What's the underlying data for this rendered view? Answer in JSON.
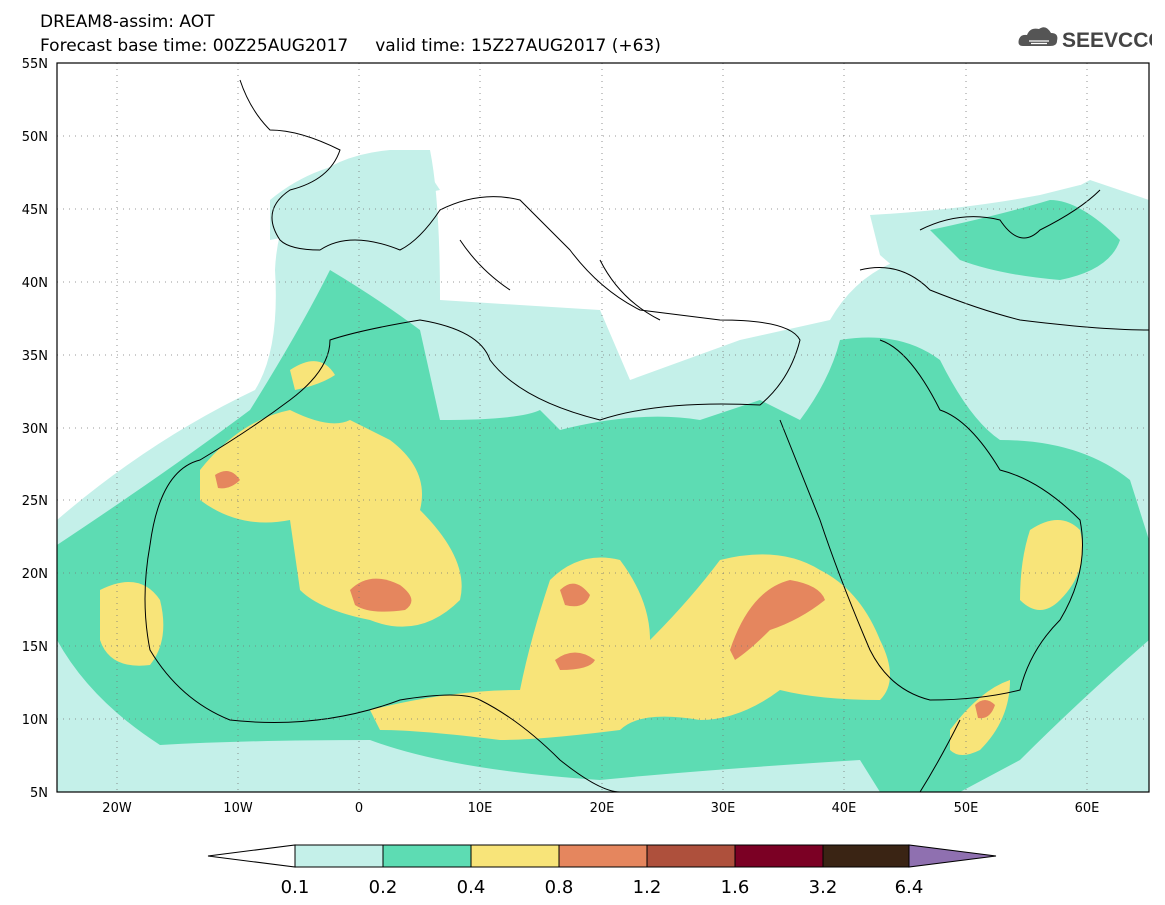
{
  "header": {
    "line1": "DREAM8-assim: AOT",
    "line2": "Forecast base time: 00Z25AUG2017     valid time: 15Z27AUG2017 (+63)"
  },
  "logo": {
    "text": "SEEVCCC",
    "icon": "cloud-icon"
  },
  "map": {
    "lon_range": [
      -25,
      65
    ],
    "lat_range": [
      5,
      55
    ],
    "lat_labels": [
      "55N",
      "50N",
      "45N",
      "40N",
      "35N",
      "30N",
      "25N",
      "20N",
      "15N",
      "10N",
      "5N"
    ],
    "lon_labels": [
      "20W",
      "10W",
      "0",
      "10E",
      "20E",
      "30E",
      "40E",
      "50E",
      "60E"
    ],
    "grid": "dotted"
  },
  "colorbar": {
    "colors": [
      "#ffffff",
      "#c4f0e9",
      "#5ddcb3",
      "#f8e479",
      "#e5865e",
      "#ae503c",
      "#7b0024",
      "#3a2414",
      "#8f70b0"
    ],
    "labels": [
      "0.1",
      "0.2",
      "0.4",
      "0.8",
      "1.2",
      "1.6",
      "3.2",
      "6.4"
    ]
  }
}
